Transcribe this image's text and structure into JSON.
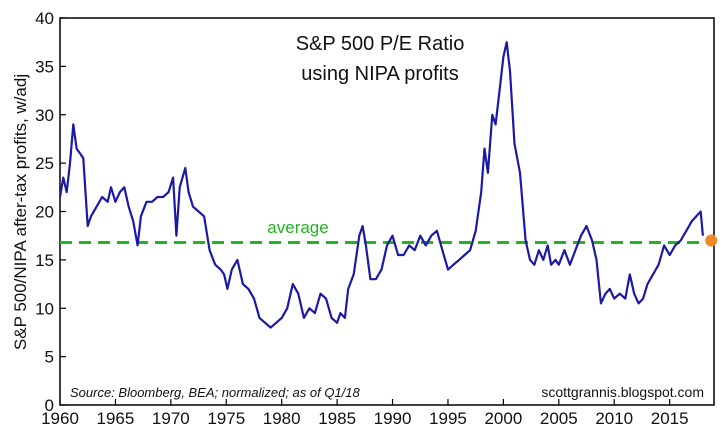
{
  "chart_data": {
    "type": "line",
    "title": "S&P 500 P/E Ratio",
    "subtitle": "using NIPA profits",
    "xlabel": "",
    "ylabel": "S&P 500/NIPA after-tax profits, w/adj",
    "xlim": [
      1960,
      2019
    ],
    "ylim": [
      0,
      40
    ],
    "x_ticks": [
      1960,
      1965,
      1970,
      1975,
      1980,
      1985,
      1990,
      1995,
      2000,
      2005,
      2010,
      2015
    ],
    "y_ticks": [
      0,
      5,
      10,
      15,
      20,
      25,
      30,
      35,
      40
    ],
    "grid": false,
    "colors": {
      "series": "#1a1aa6",
      "average": "#22b422",
      "last_point": "#f08a24",
      "axis": "#000000"
    },
    "series": [
      {
        "name": "",
        "x": [
          1960.0,
          1960.3,
          1960.6,
          1960.9,
          1961.2,
          1961.5,
          1961.8,
          1962.1,
          1962.5,
          1962.8,
          1963.3,
          1963.8,
          1964.3,
          1964.6,
          1965.0,
          1965.4,
          1965.8,
          1966.2,
          1966.6,
          1967.0,
          1967.3,
          1967.8,
          1968.3,
          1968.8,
          1969.3,
          1969.8,
          1970.2,
          1970.5,
          1970.8,
          1971.3,
          1971.6,
          1972.0,
          1972.5,
          1973.0,
          1973.5,
          1974.0,
          1974.5,
          1974.8,
          1975.1,
          1975.5,
          1976.0,
          1976.5,
          1977.0,
          1977.5,
          1978.0,
          1978.5,
          1979.0,
          1979.5,
          1980.0,
          1980.5,
          1981.0,
          1981.5,
          1982.0,
          1982.5,
          1983.0,
          1983.5,
          1984.0,
          1984.5,
          1985.0,
          1985.3,
          1985.7,
          1986.0,
          1986.5,
          1987.0,
          1987.3,
          1987.6,
          1988.0,
          1988.5,
          1989.0,
          1989.5,
          1990.0,
          1990.5,
          1991.0,
          1991.5,
          1992.0,
          1992.5,
          1993.0,
          1993.5,
          1994.0,
          1994.5,
          1995.0,
          1995.5,
          1996.0,
          1996.5,
          1997.0,
          1997.5,
          1998.0,
          1998.3,
          1998.6,
          1999.0,
          1999.3,
          1999.6,
          2000.0,
          2000.3,
          2000.6,
          2001.0,
          2001.5,
          2002.0,
          2002.4,
          2002.8,
          2003.2,
          2003.6,
          2004.0,
          2004.3,
          2004.7,
          2005.0,
          2005.5,
          2006.0,
          2006.5,
          2007.0,
          2007.5,
          2008.0,
          2008.4,
          2008.8,
          2009.2,
          2009.6,
          2010.0,
          2010.5,
          2011.0,
          2011.4,
          2011.8,
          2012.2,
          2012.6,
          2013.0,
          2013.5,
          2014.0,
          2014.5,
          2015.0,
          2015.5,
          2016.0,
          2016.5,
          2017.0,
          2017.4,
          2017.8,
          2018.0
        ],
        "values": [
          21.5,
          23.5,
          22.0,
          25.0,
          29.0,
          26.5,
          26.0,
          25.5,
          18.5,
          19.5,
          20.5,
          21.5,
          21.0,
          22.5,
          21.0,
          22.0,
          22.5,
          20.5,
          19.0,
          16.5,
          19.5,
          21.0,
          21.0,
          21.5,
          21.5,
          22.0,
          23.5,
          17.5,
          22.5,
          24.5,
          22.0,
          20.5,
          20.0,
          19.5,
          16.0,
          14.5,
          14.0,
          13.5,
          12.0,
          14.0,
          15.0,
          12.5,
          12.0,
          11.0,
          9.0,
          8.5,
          8.0,
          8.5,
          9.0,
          10.0,
          12.5,
          11.5,
          9.0,
          10.0,
          9.5,
          11.5,
          11.0,
          9.0,
          8.5,
          9.5,
          9.0,
          12.0,
          13.5,
          17.5,
          18.5,
          16.5,
          13.0,
          13.0,
          14.0,
          16.5,
          17.5,
          15.5,
          15.5,
          16.5,
          16.0,
          17.5,
          16.5,
          17.5,
          18.0,
          16.0,
          14.0,
          14.5,
          15.0,
          15.5,
          16.0,
          18.0,
          22.0,
          26.5,
          24.0,
          30.0,
          29.0,
          32.0,
          36.0,
          37.5,
          34.5,
          27.0,
          24.0,
          17.0,
          15.0,
          14.5,
          16.0,
          15.0,
          16.5,
          14.5,
          15.0,
          14.5,
          16.0,
          14.5,
          16.0,
          17.5,
          18.5,
          17.0,
          15.0,
          10.5,
          11.5,
          12.0,
          11.0,
          11.5,
          11.0,
          13.5,
          11.5,
          10.5,
          11.0,
          12.5,
          13.5,
          14.5,
          16.5,
          15.5,
          16.5,
          17.0,
          18.0,
          19.0,
          19.5,
          20.0,
          17.5
        ]
      }
    ],
    "average": {
      "label": "average",
      "value": 16.8
    },
    "last_point": {
      "x": 2018.75,
      "y": 17.0
    },
    "annotations": {
      "source": "Source: Bloomberg, BEA; normalized; as of Q1/18",
      "credit": "scottgrannis.blogspot.com"
    }
  }
}
